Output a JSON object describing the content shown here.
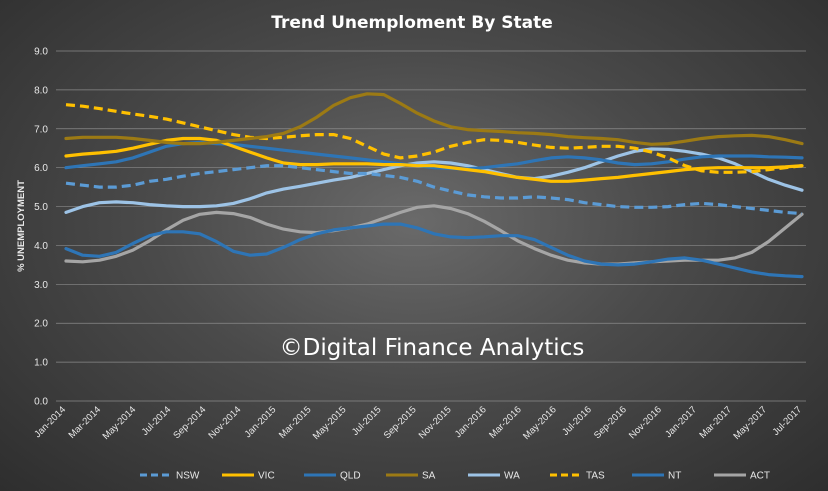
{
  "chart_data": {
    "type": "line",
    "title": "Trend Unemploment By State",
    "ylabel": "% UNEMPLOYMENT",
    "xlabel": "",
    "ylim": [
      0,
      9
    ],
    "yticks": [
      "0.0",
      "1.0",
      "2.0",
      "3.0",
      "4.0",
      "5.0",
      "6.0",
      "7.0",
      "8.0",
      "9.0"
    ],
    "grid": true,
    "legend_position": "bottom",
    "watermark": "©Digital Finance Analytics",
    "x_tick_labels": [
      "Jan-2014",
      "Mar-2014",
      "May-2014",
      "Jul-2014",
      "Sep-2014",
      "Nov-2014",
      "Jan-2015",
      "Mar-2015",
      "May-2015",
      "Jul-2015",
      "Sep-2015",
      "Nov-2015",
      "Jan-2016",
      "Mar-2016",
      "May-2016",
      "Jul-2016",
      "Sep-2016",
      "Nov-2016",
      "Jan-2017",
      "Mar-2017",
      "May-2017",
      "Jul-2017"
    ],
    "series": [
      {
        "name": "NSW",
        "color": "#5b9bd5",
        "dashed": true,
        "values": [
          5.6,
          5.55,
          5.5,
          5.5,
          5.55,
          5.65,
          5.7,
          5.78,
          5.85,
          5.9,
          5.95,
          6.0,
          6.05,
          6.05,
          6.0,
          5.95,
          5.9,
          5.85,
          5.85,
          5.8,
          5.75,
          5.65,
          5.5,
          5.4,
          5.3,
          5.25,
          5.22,
          5.22,
          5.25,
          5.22,
          5.18,
          5.1,
          5.05,
          5.0,
          4.98,
          4.98,
          5.0,
          5.05,
          5.08,
          5.05,
          5.0,
          4.95,
          4.9,
          4.85,
          4.82
        ]
      },
      {
        "name": "VIC",
        "color": "#ffc000",
        "dashed": false,
        "values": [
          6.3,
          6.35,
          6.38,
          6.42,
          6.5,
          6.6,
          6.7,
          6.75,
          6.75,
          6.7,
          6.55,
          6.4,
          6.25,
          6.12,
          6.08,
          6.08,
          6.1,
          6.1,
          6.1,
          6.08,
          6.08,
          6.05,
          6.05,
          6.0,
          5.95,
          5.9,
          5.82,
          5.75,
          5.7,
          5.65,
          5.65,
          5.68,
          5.72,
          5.75,
          5.8,
          5.85,
          5.9,
          5.95,
          5.98,
          6.0,
          6.0,
          6.0,
          6.0,
          6.02,
          6.05
        ]
      },
      {
        "name": "QLD",
        "color": "#2e75b6",
        "dashed": false,
        "values": [
          6.0,
          6.05,
          6.1,
          6.15,
          6.25,
          6.4,
          6.55,
          6.62,
          6.65,
          6.62,
          6.6,
          6.55,
          6.5,
          6.45,
          6.4,
          6.35,
          6.3,
          6.25,
          6.2,
          6.15,
          6.1,
          6.05,
          6.0,
          5.98,
          5.97,
          6.0,
          6.05,
          6.1,
          6.18,
          6.25,
          6.28,
          6.25,
          6.2,
          6.12,
          6.08,
          6.1,
          6.15,
          6.22,
          6.28,
          6.3,
          6.3,
          6.3,
          6.28,
          6.27,
          6.25
        ]
      },
      {
        "name": "SA",
        "color": "#9c7a14",
        "dashed": false,
        "values": [
          6.75,
          6.78,
          6.78,
          6.78,
          6.75,
          6.7,
          6.65,
          6.62,
          6.62,
          6.65,
          6.7,
          6.75,
          6.8,
          6.88,
          7.05,
          7.3,
          7.6,
          7.8,
          7.9,
          7.88,
          7.65,
          7.4,
          7.2,
          7.05,
          6.98,
          6.95,
          6.93,
          6.9,
          6.88,
          6.85,
          6.8,
          6.77,
          6.75,
          6.72,
          6.65,
          6.6,
          6.62,
          6.68,
          6.75,
          6.8,
          6.82,
          6.83,
          6.8,
          6.72,
          6.62
        ]
      },
      {
        "name": "WA",
        "color": "#9dc3e6",
        "dashed": false,
        "values": [
          4.85,
          5.0,
          5.1,
          5.12,
          5.1,
          5.05,
          5.02,
          5.0,
          5.0,
          5.02,
          5.08,
          5.2,
          5.35,
          5.45,
          5.52,
          5.6,
          5.68,
          5.75,
          5.85,
          5.95,
          6.05,
          6.12,
          6.15,
          6.12,
          6.05,
          5.95,
          5.85,
          5.75,
          5.72,
          5.78,
          5.88,
          6.0,
          6.15,
          6.3,
          6.42,
          6.48,
          6.47,
          6.42,
          6.35,
          6.25,
          6.1,
          5.9,
          5.7,
          5.55,
          5.42
        ]
      },
      {
        "name": "TAS",
        "color": "#ffc000",
        "dashed": true,
        "values": [
          7.62,
          7.58,
          7.52,
          7.45,
          7.38,
          7.32,
          7.25,
          7.15,
          7.05,
          6.95,
          6.85,
          6.78,
          6.75,
          6.78,
          6.82,
          6.85,
          6.85,
          6.75,
          6.55,
          6.35,
          6.25,
          6.3,
          6.4,
          6.55,
          6.65,
          6.72,
          6.7,
          6.65,
          6.58,
          6.52,
          6.5,
          6.52,
          6.55,
          6.55,
          6.5,
          6.4,
          6.25,
          6.05,
          5.92,
          5.88,
          5.88,
          5.9,
          5.95,
          6.0,
          6.05
        ]
      },
      {
        "name": "NT",
        "color": "#2e75b6",
        "dashed": false,
        "values": [
          3.92,
          3.75,
          3.72,
          3.82,
          4.05,
          4.25,
          4.35,
          4.35,
          4.3,
          4.1,
          3.85,
          3.75,
          3.78,
          3.95,
          4.15,
          4.3,
          4.4,
          4.45,
          4.5,
          4.55,
          4.55,
          4.45,
          4.3,
          4.22,
          4.2,
          4.22,
          4.25,
          4.25,
          4.15,
          3.95,
          3.75,
          3.6,
          3.52,
          3.5,
          3.52,
          3.58,
          3.65,
          3.68,
          3.62,
          3.52,
          3.42,
          3.32,
          3.25,
          3.22,
          3.2
        ]
      },
      {
        "name": "ACT",
        "color": "#a5a5a5",
        "dashed": false,
        "values": [
          3.6,
          3.58,
          3.62,
          3.72,
          3.88,
          4.12,
          4.4,
          4.65,
          4.8,
          4.85,
          4.82,
          4.72,
          4.55,
          4.42,
          4.35,
          4.33,
          4.38,
          4.45,
          4.55,
          4.7,
          4.85,
          4.98,
          5.02,
          4.95,
          4.82,
          4.62,
          4.38,
          4.12,
          3.92,
          3.75,
          3.62,
          3.55,
          3.52,
          3.52,
          3.55,
          3.58,
          3.6,
          3.62,
          3.62,
          3.62,
          3.68,
          3.82,
          4.1,
          4.45,
          4.8
        ]
      }
    ]
  }
}
